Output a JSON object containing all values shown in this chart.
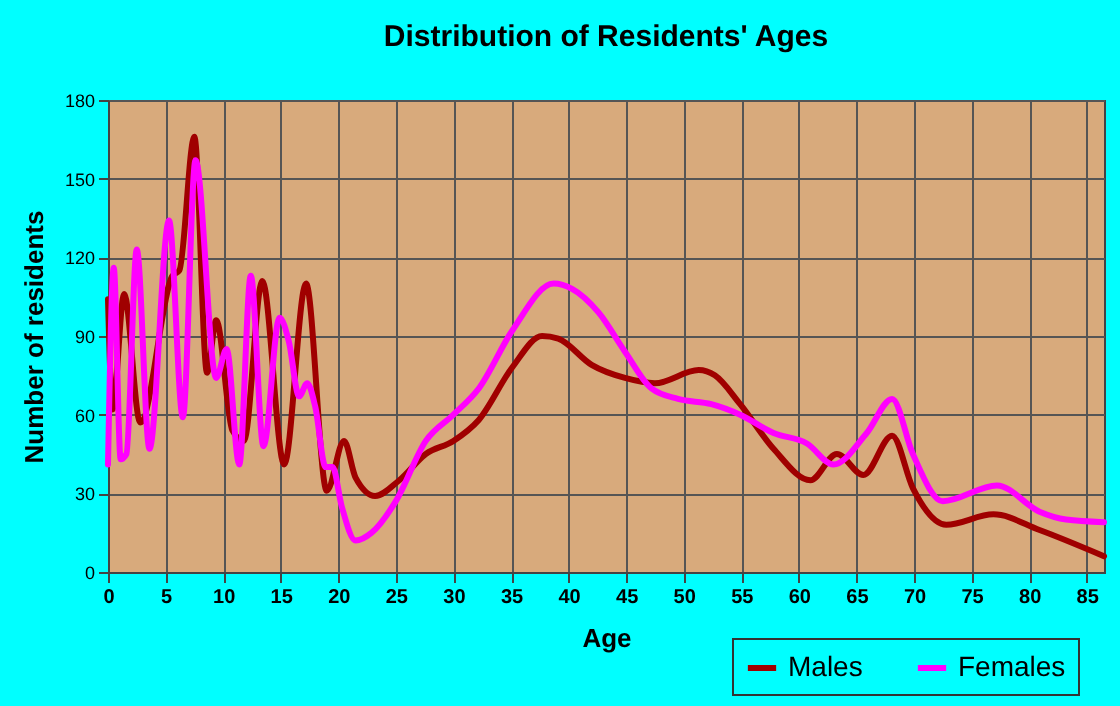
{
  "chart_data": {
    "type": "line",
    "title": "Distribution of Residents' Ages",
    "xlabel": "Age",
    "ylabel": "Number of residents",
    "xlim": [
      0,
      86.5
    ],
    "xticks": [
      0,
      5,
      10,
      15,
      20,
      25,
      30,
      35,
      40,
      45,
      50,
      55,
      60,
      65,
      70,
      75,
      80,
      85
    ],
    "ylim": [
      0,
      180
    ],
    "yticks": [
      0,
      30,
      60,
      90,
      120,
      150,
      180
    ],
    "grid": true,
    "legend": "bottom right",
    "series": [
      {
        "name": "Males",
        "color": "#a00000",
        "x": [
          0,
          0.4,
          1.4,
          2.8,
          5.6,
          6.2,
          7.5,
          8.6,
          9.4,
          10.8,
          11.8,
          13.4,
          15.3,
          17.2,
          19,
          20.5,
          21.5,
          23.2,
          25.3,
          27.6,
          30,
          32.2,
          35.1,
          37.7,
          39.1,
          42,
          44.9,
          47.5,
          51.3,
          52.7,
          54.9,
          57.8,
          61,
          63.3,
          65.6,
          68.1,
          69.9,
          72.8,
          76.9,
          80.9,
          86.5
        ],
        "values": [
          104,
          62,
          106,
          57,
          113,
          115,
          166,
          76,
          96,
          54,
          50,
          111,
          41,
          110,
          31,
          50,
          36,
          29,
          35,
          45,
          50,
          58,
          78,
          90,
          89,
          79,
          74,
          72,
          77,
          75,
          64,
          47,
          35,
          45,
          37,
          52,
          32,
          18,
          22,
          16,
          6
        ]
      },
      {
        "name": "Females",
        "color": "#ff00ff",
        "x": [
          0,
          0.5,
          1.1,
          1.6,
          2.5,
          3.6,
          5.3,
          6.5,
          7.6,
          9.4,
          10.3,
          11.4,
          12.4,
          13.5,
          14.9,
          15.7,
          16.6,
          17.3,
          18,
          18.9,
          19.5,
          20.3,
          21.5,
          22.9,
          25,
          27.6,
          30,
          32.2,
          35.1,
          38.7,
          40.3,
          42.6,
          44.9,
          47.2,
          49.5,
          52.4,
          54.9,
          57.8,
          60.7,
          63,
          65.9,
          68.1,
          69.9,
          72.5,
          77.2,
          80.9,
          83.2,
          86.5
        ],
        "values": [
          41,
          116,
          43,
          45,
          123,
          47,
          134,
          59,
          157,
          74,
          85,
          41,
          113,
          48,
          97,
          88,
          67,
          72,
          63,
          40,
          40,
          25,
          12,
          15,
          27,
          50,
          60,
          70,
          92,
          110,
          108,
          99,
          84,
          70,
          66,
          64,
          60,
          53,
          49,
          41,
          53,
          66,
          45,
          27,
          33,
          23,
          20,
          19
        ]
      }
    ]
  }
}
